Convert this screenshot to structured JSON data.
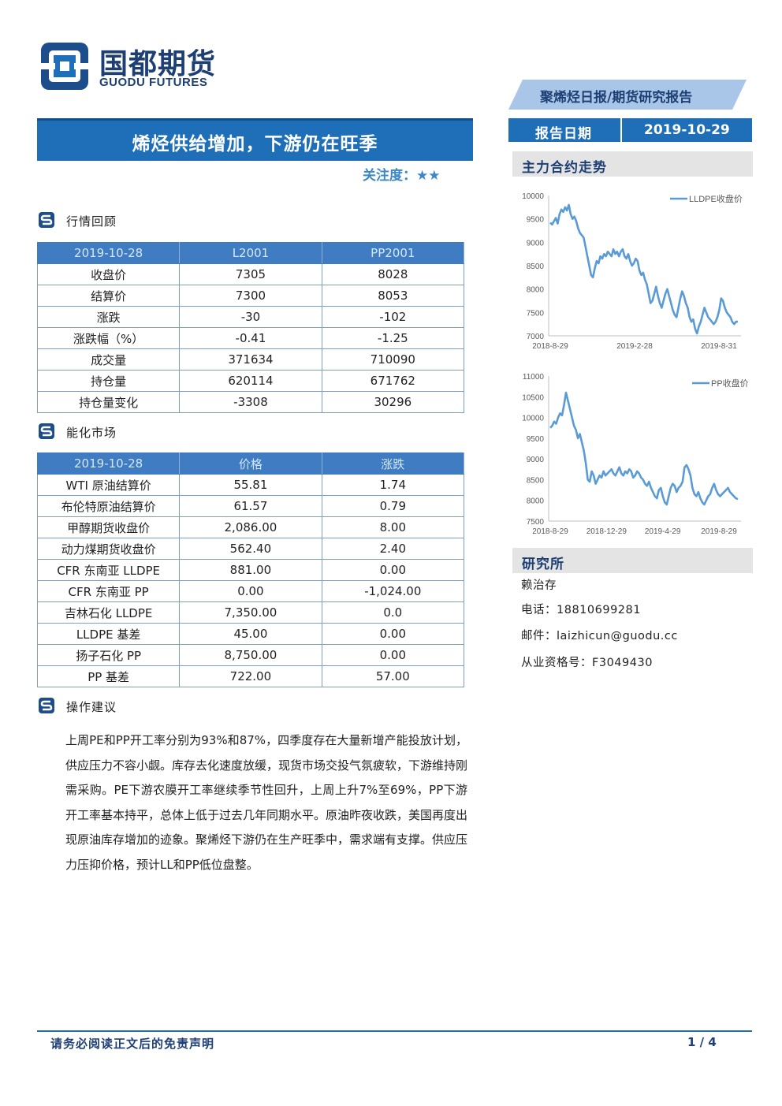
{
  "header": {
    "logo_cn": "国都期货",
    "logo_en": "GUODU FUTURES",
    "report_type": "聚烯烃日报/期货研究报告",
    "title": "烯烃供给增加，下游仍在旺季",
    "focus_label": "关注度：",
    "focus_stars": "★★",
    "report_date_label": "报告日期",
    "report_date": "2019-10-29"
  },
  "sections": {
    "market_review": "行情回顾",
    "energy_market": "能化市场",
    "advice": "操作建议"
  },
  "table1": {
    "headers": [
      "2019-10-28",
      "L2001",
      "PP2001"
    ],
    "rows": [
      [
        "收盘价",
        "7305",
        "8028"
      ],
      [
        "结算价",
        "7300",
        "8053"
      ],
      [
        "涨跌",
        "-30",
        "-102"
      ],
      [
        "涨跌幅（%）",
        "-0.41",
        "-1.25"
      ],
      [
        "成交量",
        "371634",
        "710090"
      ],
      [
        "持仓量",
        "620114",
        "671762"
      ],
      [
        "持仓量变化",
        "-3308",
        "30296"
      ]
    ]
  },
  "table2": {
    "headers": [
      "2019-10-28",
      "价格",
      "涨跌"
    ],
    "rows": [
      [
        "WTI 原油结算价",
        "55.81",
        "1.74"
      ],
      [
        "布伦特原油结算价",
        "61.57",
        "0.79"
      ],
      [
        "甲醇期货收盘价",
        "2,086.00",
        "8.00"
      ],
      [
        "动力煤期货收盘价",
        "562.40",
        "2.40"
      ],
      [
        "CFR 东南亚 LLDPE",
        "881.00",
        "0.00"
      ],
      [
        "CFR 东南亚 PP",
        "0.00",
        "-1,024.00"
      ],
      [
        "吉林石化 LLDPE",
        "7,350.00",
        "0.0"
      ],
      [
        "LLDPE 基差",
        "45.00",
        "0.00"
      ],
      [
        "扬子石化 PP",
        "8,750.00",
        "0.00"
      ],
      [
        "PP 基差",
        "722.00",
        "57.00"
      ]
    ]
  },
  "advice_text": "上周PE和PP开工率分别为93%和87%，四季度存在大量新增产能投放计划，供应压力不容小觑。库存去化速度放缓，现货市场交投气氛疲软，下游维持刚需采购。PE下游农膜开工率继续季节性回升，上周上升7%至69%，PP下游开工率基本持平，总体上低于过去几年同期水平。原油昨夜收跌，美国再度出现原油库存增加的迹象。聚烯烃下游仍在生产旺季中，需求端有支撑。供应压力压抑价格，预计LL和PP低位盘整。",
  "sidebar": {
    "trend_title": "主力合约走势",
    "institute_title": "研究所",
    "analyst": "赖治存",
    "phone": "电话：18810699281",
    "email": "邮件：laizhicun@guodu.cc",
    "license": "从业资格号：F3049430"
  },
  "footer": {
    "disclaimer": "请务必阅读正文后的免责声明",
    "page": "1 / 4"
  },
  "chart_data": [
    {
      "type": "line",
      "title": "",
      "xlabel": "",
      "ylabel": "",
      "ylim": [
        7000,
        10000
      ],
      "yticks": [
        "10000",
        "9500",
        "9000",
        "8500",
        "8000",
        "7500",
        "7000"
      ],
      "xticks": [
        "2018-8-29",
        "2019-2-28",
        "2019-8-31"
      ],
      "legend": "top-right",
      "series": [
        {
          "name": "LLDPE收盘价",
          "color": "#5b9bd5",
          "values": [
            9420,
            9380,
            9450,
            9520,
            9400,
            9600,
            9700,
            9650,
            9750,
            9680,
            9800,
            9600,
            9500,
            9550,
            9450,
            9300,
            9200,
            9150,
            9100,
            8900,
            8700,
            8500,
            8300,
            8250,
            8450,
            8600,
            8550,
            8700,
            8650,
            8750,
            8700,
            8800,
            8750,
            8700,
            8850,
            8750,
            8800,
            8700,
            8800,
            8850,
            8700,
            8650,
            8750,
            8600,
            8500,
            8550,
            8650,
            8600,
            8400,
            8300,
            8350,
            8200,
            8100,
            7900,
            7700,
            7750,
            7900,
            8050,
            7850,
            7700,
            7600,
            7750,
            7900,
            8000,
            7850,
            7700,
            7550,
            7450,
            7400,
            7600,
            7800,
            7950,
            7850,
            7700,
            7600,
            7400,
            7300,
            7350,
            7150,
            7050,
            7200,
            7300,
            7450,
            7600,
            7500,
            7400,
            7350,
            7300,
            7250,
            7300,
            7400,
            7550,
            7800,
            7750,
            7600,
            7500,
            7450,
            7400,
            7300,
            7250,
            7300,
            7305
          ]
        }
      ]
    },
    {
      "type": "line",
      "title": "",
      "xlabel": "",
      "ylabel": "",
      "ylim": [
        7500,
        11000
      ],
      "yticks": [
        "11000",
        "10500",
        "10000",
        "9500",
        "9000",
        "8500",
        "8000",
        "7500"
      ],
      "xticks": [
        "2018-8-29",
        "2018-12-29",
        "2019-4-29",
        "2019-8-29"
      ],
      "legend": "top-right",
      "series": [
        {
          "name": "PP收盘价",
          "color": "#5b9bd5",
          "values": [
            9750,
            9800,
            9900,
            9850,
            10000,
            10100,
            10050,
            10300,
            10600,
            10400,
            10200,
            10000,
            9800,
            9700,
            9500,
            9600,
            9400,
            9200,
            8900,
            8500,
            8450,
            8700,
            8600,
            8400,
            8500,
            8600,
            8550,
            8700,
            8600,
            8650,
            8700,
            8750,
            8650,
            8600,
            8700,
            8800,
            8650,
            8600,
            8700,
            8650,
            8750,
            8700,
            8550,
            8600,
            8700,
            8650,
            8550,
            8500,
            8400,
            8350,
            8450,
            8300,
            8200,
            8100,
            8050,
            8250,
            8300,
            8100,
            7950,
            7900,
            8100,
            8300,
            8400,
            8350,
            8200,
            8300,
            8350,
            8450,
            8800,
            8850,
            8750,
            8600,
            8300,
            8150,
            8100,
            8200,
            8050,
            7950,
            7900,
            8000,
            8100,
            8150,
            8300,
            8400,
            8250,
            8150,
            8100,
            8150,
            8200,
            8250,
            8300,
            8200,
            8150,
            8100,
            8050,
            8028
          ]
        }
      ]
    }
  ]
}
